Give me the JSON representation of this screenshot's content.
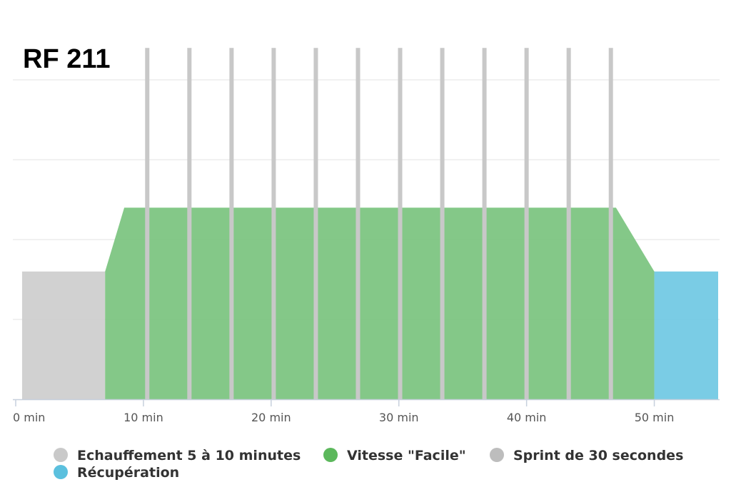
{
  "chart_data": {
    "type": "area",
    "title": "RF 211",
    "xlabel": "",
    "ylabel": "",
    "x_unit_suffix": " min",
    "xlim": [
      0,
      55
    ],
    "ylim": [
      0,
      100
    ],
    "x_ticks": [
      0,
      10,
      20,
      30,
      40,
      50
    ],
    "x_tick_labels": [
      "0 min",
      "10 min",
      "20 min",
      "30 min",
      "40 min",
      "50 min"
    ],
    "grid_y": [
      25,
      50,
      75,
      100
    ],
    "legend_position": "bottom",
    "series": [
      {
        "name": "Echauffement 5 à 10 minutes",
        "kind": "area",
        "color": "#cccccc",
        "points": [
          [
            0.5,
            40
          ],
          [
            7.0,
            40
          ]
        ]
      },
      {
        "name": "Vitesse \"Facile\"",
        "kind": "area",
        "color": "#77c27b",
        "points": [
          [
            7.0,
            40
          ],
          [
            8.5,
            60
          ],
          [
            47.0,
            60
          ],
          [
            50.0,
            40
          ]
        ]
      },
      {
        "name": "Sprint de 30 secondes",
        "kind": "bars",
        "color": "#c8c8c8",
        "x": [
          10.3,
          13.6,
          16.9,
          20.2,
          23.5,
          26.8,
          30.1,
          33.4,
          36.7,
          40.0,
          43.3,
          46.6
        ],
        "value": 110
      },
      {
        "name": "Récupération",
        "kind": "area",
        "color": "#6cc7e2",
        "points": [
          [
            50.0,
            40
          ],
          [
            55.0,
            40
          ]
        ]
      }
    ],
    "legend_colors": [
      "#c9c9c9",
      "#5cb85c",
      "#bdbdbd",
      "#5bc0de"
    ]
  }
}
